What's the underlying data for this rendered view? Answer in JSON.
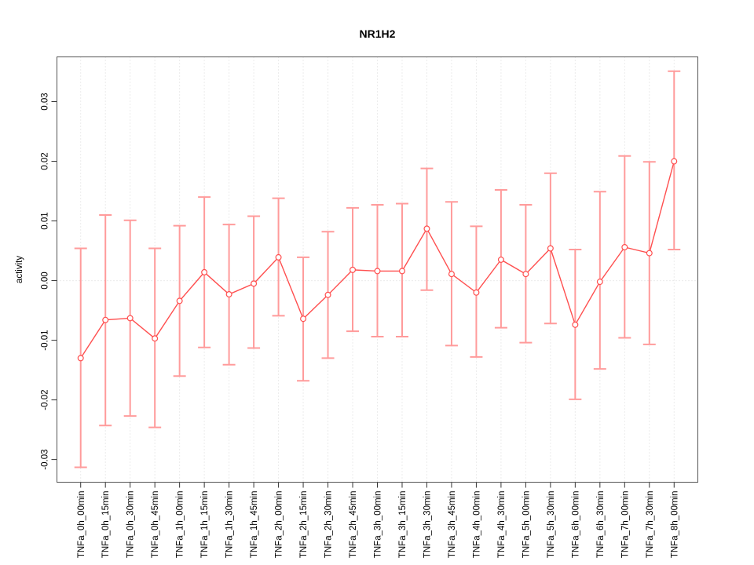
{
  "chart_data": {
    "type": "line",
    "title": "NR1H2",
    "xlabel": "",
    "ylabel": "activity",
    "legend_position": "none",
    "grid": {
      "vertical_dotted_per_category": true,
      "horizontal_zero_line_dotted": true
    },
    "ylim": [
      -0.0338,
      0.0375
    ],
    "yticks": {
      "values": [
        -0.03,
        -0.02,
        -0.01,
        0,
        0.01,
        0.02,
        0.03
      ],
      "labels": [
        "-0.03",
        "-0.02",
        "-0.01",
        "0.00",
        "0.01",
        "0.02",
        "0.03"
      ]
    },
    "categories": [
      "TNFa_0h_00min",
      "TNFa_0h_15min",
      "TNFa_0h_30min",
      "TNFa_0h_45min",
      "TNFa_1h_00min",
      "TNFa_1h_15min",
      "TNFa_1h_30min",
      "TNFa_1h_45min",
      "TNFa_2h_00min",
      "TNFa_2h_15min",
      "TNFa_2h_30min",
      "TNFa_2h_45min",
      "TNFa_3h_00min",
      "TNFa_3h_15min",
      "TNFa_3h_30min",
      "TNFa_3h_45min",
      "TNFa_4h_00min",
      "TNFa_4h_30min",
      "TNFa_5h_00min",
      "TNFa_5h_30min",
      "TNFa_6h_00min",
      "TNFa_6h_30min",
      "TNFa_7h_00min",
      "TNFa_7h_30min",
      "TNFa_8h_00min"
    ],
    "series": [
      {
        "name": "activity",
        "style": "open-circle points + connecting line + error bars",
        "values": [
          -0.013,
          -0.0066,
          -0.0063,
          -0.0097,
          -0.0034,
          0.0014,
          -0.0023,
          -0.0005,
          0.0039,
          -0.0064,
          -0.0024,
          0.0018,
          0.0016,
          0.0016,
          0.0087,
          0.0011,
          -0.002,
          0.0035,
          0.0011,
          0.0054,
          -0.0074,
          -0.0002,
          0.0056,
          0.0046,
          0.02
        ],
        "error_upper": [
          0.0054,
          0.011,
          0.0101,
          0.0054,
          0.0092,
          0.014,
          0.0094,
          0.0108,
          0.0138,
          0.0039,
          0.0082,
          0.0122,
          0.0127,
          0.0129,
          0.0188,
          0.0132,
          0.0091,
          0.0152,
          0.0127,
          0.018,
          0.0052,
          0.0149,
          0.0209,
          0.0199,
          0.0351
        ],
        "error_lower": [
          -0.0313,
          -0.0243,
          -0.0227,
          -0.0246,
          -0.016,
          -0.0112,
          -0.0141,
          -0.0113,
          -0.0059,
          -0.0168,
          -0.013,
          -0.0085,
          -0.0094,
          -0.0094,
          -0.0016,
          -0.0109,
          -0.0128,
          -0.0079,
          -0.0104,
          -0.0072,
          -0.0199,
          -0.0148,
          -0.0096,
          -0.0107,
          0.0052
        ]
      }
    ],
    "colors": {
      "line": "#ff4f4f",
      "point_stroke": "#ff4f4f",
      "point_fill": "#ffffff",
      "error_bar": "#ff9b9b",
      "grid": "#d8d8d8",
      "zero_line": "#d8d8d8",
      "axis_box": "#555555",
      "tick": "#333333",
      "text": "#000000",
      "background": "#ffffff"
    }
  }
}
